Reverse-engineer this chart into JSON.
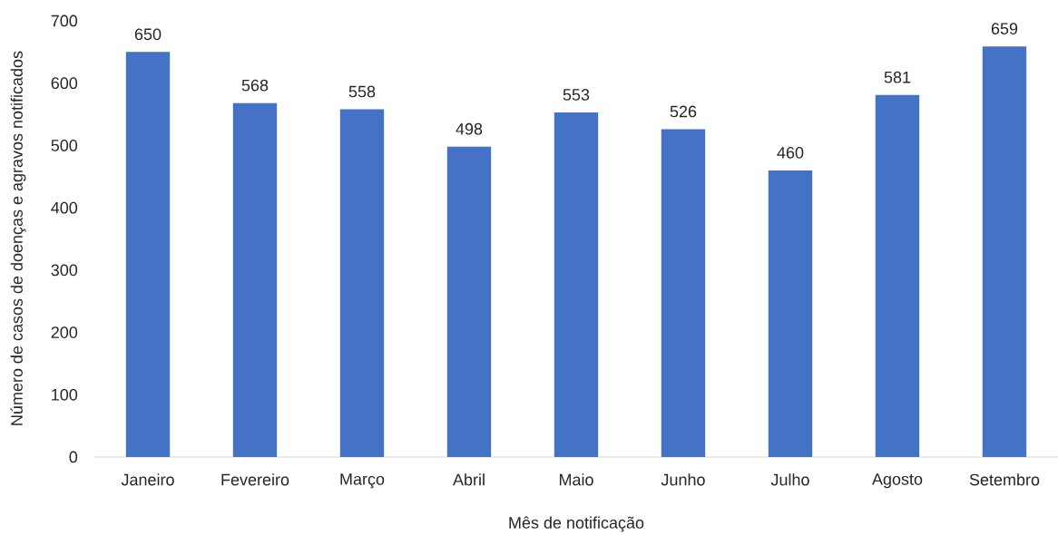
{
  "chart_data": {
    "type": "bar",
    "xlabel": "Mês de notificação",
    "ylabel": "Número de casos de doenças e agravos notificados",
    "categories": [
      "Janeiro",
      "Fevereiro",
      "Março",
      "Abril",
      "Maio",
      "Junho",
      "Julho",
      "Agosto",
      "Setembro"
    ],
    "values": [
      650,
      568,
      558,
      498,
      553,
      526,
      460,
      581,
      659
    ],
    "color": "#4472c4",
    "ylim": [
      0,
      700
    ],
    "yticks": [
      0,
      100,
      200,
      300,
      400,
      500,
      600,
      700
    ],
    "data_labels": true
  }
}
